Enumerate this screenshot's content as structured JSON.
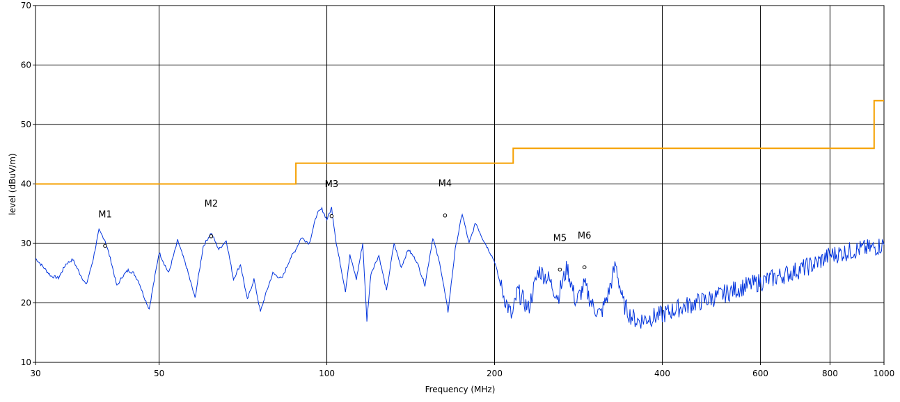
{
  "chart_data": {
    "type": "line",
    "title": "",
    "xlabel": "Frequency (MHz)",
    "ylabel": "level (dBuV/m)",
    "x_scale": "log",
    "xlim": [
      30,
      1000
    ],
    "ylim": [
      10,
      70
    ],
    "grid": true,
    "legend": "none",
    "x_ticks": [
      30,
      50,
      100,
      200,
      400,
      600,
      800,
      1000
    ],
    "x_tick_labels": [
      "30",
      "50",
      "100",
      "200",
      "400",
      "600",
      "800",
      "1000"
    ],
    "y_ticks": [
      10,
      20,
      30,
      40,
      50,
      60,
      70
    ],
    "y_tick_labels": [
      "10",
      "20",
      "30",
      "40",
      "50",
      "60",
      "70"
    ],
    "limit_color": "#f5a000",
    "trace_color": "#0033dd",
    "limit_line": {
      "x": [
        30,
        88,
        88,
        216,
        216,
        960,
        960,
        1000
      ],
      "y": [
        40,
        40,
        43.5,
        43.5,
        46,
        46,
        54,
        54
      ]
    },
    "measurement_trace": {
      "x": [
        30,
        31,
        32,
        33,
        34,
        35,
        36,
        37,
        38,
        39,
        40,
        41,
        42,
        43,
        44,
        45,
        46,
        47,
        48,
        50,
        52,
        54,
        56,
        58,
        60,
        62,
        64,
        66,
        68,
        70,
        72,
        74,
        76,
        78,
        80,
        83,
        86,
        88,
        90,
        93,
        96,
        98,
        100,
        102,
        104,
        106,
        108,
        110,
        113,
        116,
        118,
        120,
        124,
        128,
        132,
        136,
        140,
        145,
        150,
        155,
        160,
        165,
        170,
        175,
        180,
        185,
        190,
        195,
        200,
        205,
        210,
        215,
        220,
        230,
        240,
        250,
        260,
        270,
        280,
        290,
        300,
        310,
        320,
        330,
        340,
        350,
        360,
        370,
        380,
        400,
        430,
        460,
        500,
        550,
        600,
        650,
        700,
        750,
        800,
        850,
        900,
        950,
        1000
      ],
      "y": [
        27.5,
        26,
        24.5,
        24.2,
        26.5,
        27.3,
        25,
        23,
        27,
        32.2,
        30.5,
        27,
        22.8,
        24.5,
        25.5,
        25,
        23.5,
        21,
        19,
        28.5,
        25,
        30.5,
        26,
        20.8,
        29.5,
        31.8,
        29,
        30.5,
        24,
        26.5,
        20.5,
        24,
        18.5,
        22,
        25,
        24,
        27.5,
        29,
        31,
        30,
        35,
        35.8,
        34,
        36,
        30,
        26,
        22,
        28,
        24,
        30,
        17,
        25,
        28,
        22,
        30,
        26,
        29,
        27,
        23,
        31,
        26,
        18.5,
        29,
        35,
        30,
        33.5,
        31,
        29,
        27,
        23,
        20,
        17.5,
        22,
        19,
        25.5,
        24,
        21,
        26,
        20,
        23,
        19.5,
        18,
        21.5,
        26.5,
        20,
        18,
        17,
        17.2,
        17.5,
        18,
        19.2,
        20,
        21,
        22.5,
        23.5,
        24.5,
        25.5,
        26.5,
        28,
        28.5,
        29,
        29.2,
        29.8
      ]
    },
    "markers": [
      {
        "label": "M1",
        "x": 40,
        "y": 29.6,
        "label_y": 34.4
      },
      {
        "label": "M2",
        "x": 62,
        "y": 31.2,
        "label_y": 36.2
      },
      {
        "label": "M3",
        "x": 102,
        "y": 34.6,
        "label_y": 39.5
      },
      {
        "label": "M4",
        "x": 163,
        "y": 34.7,
        "label_y": 39.6
      },
      {
        "label": "M5",
        "x": 262,
        "y": 25.6,
        "label_y": 30.4
      },
      {
        "label": "M6",
        "x": 290,
        "y": 26.0,
        "label_y": 30.8
      }
    ]
  }
}
